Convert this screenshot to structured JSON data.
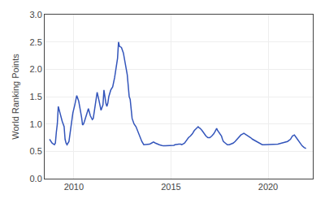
{
  "chart_data": {
    "type": "line",
    "y_label": "World Ranking Points",
    "color": "#3355bb",
    "grid": true,
    "xlim": [
      2008.5,
      2022.3
    ],
    "ylim": [
      0,
      3.0
    ],
    "xticks": [
      2010,
      2015,
      2020
    ],
    "yticks": [
      {
        "value": 0,
        "label": "0.0"
      },
      0.5,
      {
        "value": 1.0,
        "label": "1.0"
      },
      1.5,
      {
        "value": 2.0,
        "label": "2.0"
      },
      2.5,
      {
        "value": 3.0,
        "label": "3.0"
      }
    ],
    "x": [
      2008.75,
      2008.88,
      2009.0,
      2009.05,
      2009.1,
      2009.15,
      2009.2,
      2009.3,
      2009.35,
      2009.4,
      2009.5,
      2009.55,
      2009.6,
      2009.65,
      2009.75,
      2009.85,
      2009.95,
      2010.05,
      2010.15,
      2010.25,
      2010.35,
      2010.4,
      2010.45,
      2010.5,
      2010.55,
      2010.65,
      2010.75,
      2010.85,
      2010.95,
      2011.0,
      2011.1,
      2011.2,
      2011.3,
      2011.35,
      2011.4,
      2011.5,
      2011.55,
      2011.65,
      2011.7,
      2011.75,
      2011.8,
      2011.9,
      2012.0,
      2012.1,
      2012.2,
      2012.25,
      2012.3,
      2012.35,
      2012.45,
      2012.55,
      2012.65,
      2012.75,
      2012.85,
      2012.9,
      2013.0,
      2013.1,
      2013.2,
      2013.3,
      2013.4,
      2013.5,
      2013.6,
      2013.7,
      2013.8,
      2013.9,
      2014.0,
      2014.1,
      2014.2,
      2014.3,
      2014.4,
      2014.5,
      2014.55,
      2014.6,
      2014.7,
      2014.8,
      2014.9,
      2015.0,
      2015.1,
      2015.15,
      2015.2,
      2015.3,
      2015.4,
      2015.5,
      2015.55,
      2015.6,
      2015.7,
      2015.8,
      2015.9,
      2016.0,
      2016.1,
      2016.2,
      2016.3,
      2016.4,
      2016.45,
      2016.5,
      2016.6,
      2016.7,
      2016.8,
      2016.9,
      2017.0,
      2017.1,
      2017.2,
      2017.3,
      2017.35,
      2017.4,
      2017.5,
      2017.6,
      2017.65,
      2017.7,
      2017.8,
      2017.9,
      2018.0,
      2018.1,
      2018.2,
      2018.3,
      2018.4,
      2018.5,
      2018.6,
      2018.7,
      2018.75,
      2018.8,
      2018.9,
      2019.0,
      2019.1,
      2019.2,
      2019.3,
      2019.4,
      2019.5,
      2019.6,
      2019.7,
      2019.8,
      2019.9,
      2020.0,
      2020.1,
      2020.5,
      2021.0,
      2021.15,
      2021.25,
      2021.35,
      2021.45,
      2021.55,
      2021.65,
      2021.75,
      2021.85,
      2021.95
    ],
    "values": [
      0.72,
      0.65,
      0.62,
      0.65,
      0.85,
      1.0,
      1.32,
      1.18,
      1.12,
      1.05,
      0.95,
      0.72,
      0.65,
      0.62,
      0.68,
      0.95,
      1.2,
      1.35,
      1.52,
      1.42,
      1.25,
      1.12,
      0.98,
      1.0,
      1.05,
      1.18,
      1.28,
      1.15,
      1.08,
      1.1,
      1.38,
      1.58,
      1.42,
      1.32,
      1.25,
      1.35,
      1.62,
      1.38,
      1.32,
      1.38,
      1.5,
      1.62,
      1.68,
      1.85,
      2.05,
      2.2,
      2.5,
      2.42,
      2.4,
      2.3,
      2.1,
      1.9,
      1.5,
      1.45,
      1.1,
      1.0,
      0.95,
      0.85,
      0.75,
      0.68,
      0.62,
      0.62,
      0.63,
      0.63,
      0.65,
      0.67,
      0.65,
      0.63,
      0.62,
      0.61,
      0.6,
      0.6,
      0.6,
      0.6,
      0.6,
      0.6,
      0.6,
      0.61,
      0.62,
      0.63,
      0.63,
      0.63,
      0.62,
      0.63,
      0.65,
      0.7,
      0.75,
      0.78,
      0.82,
      0.88,
      0.92,
      0.95,
      0.93,
      0.92,
      0.88,
      0.82,
      0.78,
      0.75,
      0.75,
      0.78,
      0.82,
      0.88,
      0.92,
      0.88,
      0.82,
      0.78,
      0.72,
      0.68,
      0.65,
      0.62,
      0.62,
      0.63,
      0.65,
      0.68,
      0.72,
      0.75,
      0.8,
      0.82,
      0.83,
      0.82,
      0.8,
      0.78,
      0.75,
      0.72,
      0.7,
      0.68,
      0.65,
      0.63,
      0.62,
      0.62,
      0.62,
      0.62,
      0.62,
      0.63,
      0.68,
      0.72,
      0.78,
      0.8,
      0.75,
      0.7,
      0.65,
      0.6,
      0.57,
      0.55
    ]
  }
}
